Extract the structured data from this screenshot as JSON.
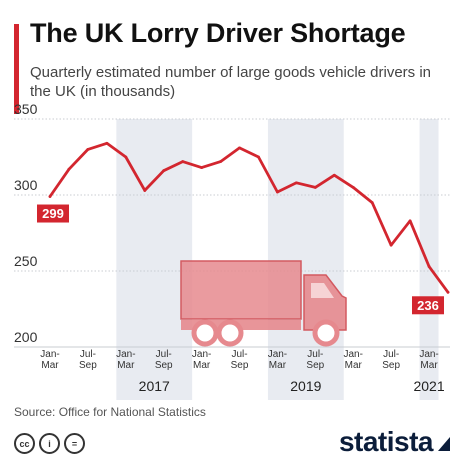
{
  "title": "The UK Lorry Driver Shortage",
  "subtitle": "Quarterly estimated number of large goods vehicle drivers in the UK (in thousands)",
  "source": "Source: Office for National Statistics",
  "brand": "statista",
  "footer_icons": [
    {
      "name": "cc-icon",
      "glyph": "cc"
    },
    {
      "name": "attribution-icon",
      "glyph": "i"
    },
    {
      "name": "no-derivatives-icon",
      "glyph": "="
    }
  ],
  "colors": {
    "accent": "#d3262f",
    "line": "#d3262f",
    "band": "#e8ebf1",
    "truck": "#e6898e",
    "brand": "#0b1d3a"
  },
  "chart_data": {
    "type": "line",
    "title": "The UK Lorry Driver Shortage",
    "subtitle": "Quarterly estimated number of large goods vehicle drivers in the UK (in thousands)",
    "xlabel": "",
    "ylabel": "",
    "ylim": [
      200,
      350
    ],
    "yticks": [
      200,
      250,
      300,
      350
    ],
    "grid": true,
    "x_tick_labels": [
      "Jan-\nMar",
      "Jul-\nSep",
      "Jan-\nMar",
      "Jul-\nSep",
      "Jan-\nMar",
      "Jul-\nSep",
      "Jan-\nMar",
      "Jul-\nSep",
      "Jan-\nMar",
      "Jul-\nSep",
      "Jan-\nMar"
    ],
    "years": [
      {
        "label": "2017",
        "start_index": 4
      },
      {
        "label": "2019",
        "start_index": 12
      },
      {
        "label": "2021",
        "start_index": 20
      }
    ],
    "shaded_years": [
      {
        "start_index": 4,
        "end_index": 8
      },
      {
        "start_index": 12,
        "end_index": 16
      },
      {
        "start_index": 20,
        "end_index": 21
      }
    ],
    "series": [
      {
        "values": [
          299,
          317,
          330,
          334,
          325,
          303,
          316,
          322,
          318,
          322,
          331,
          325,
          302,
          308,
          305,
          313,
          305,
          295,
          267,
          283,
          253,
          236
        ]
      }
    ],
    "data_labels": [
      {
        "index": 0,
        "text": "299"
      },
      {
        "index": 21,
        "text": "236"
      }
    ],
    "annotation": "truck-icon"
  }
}
